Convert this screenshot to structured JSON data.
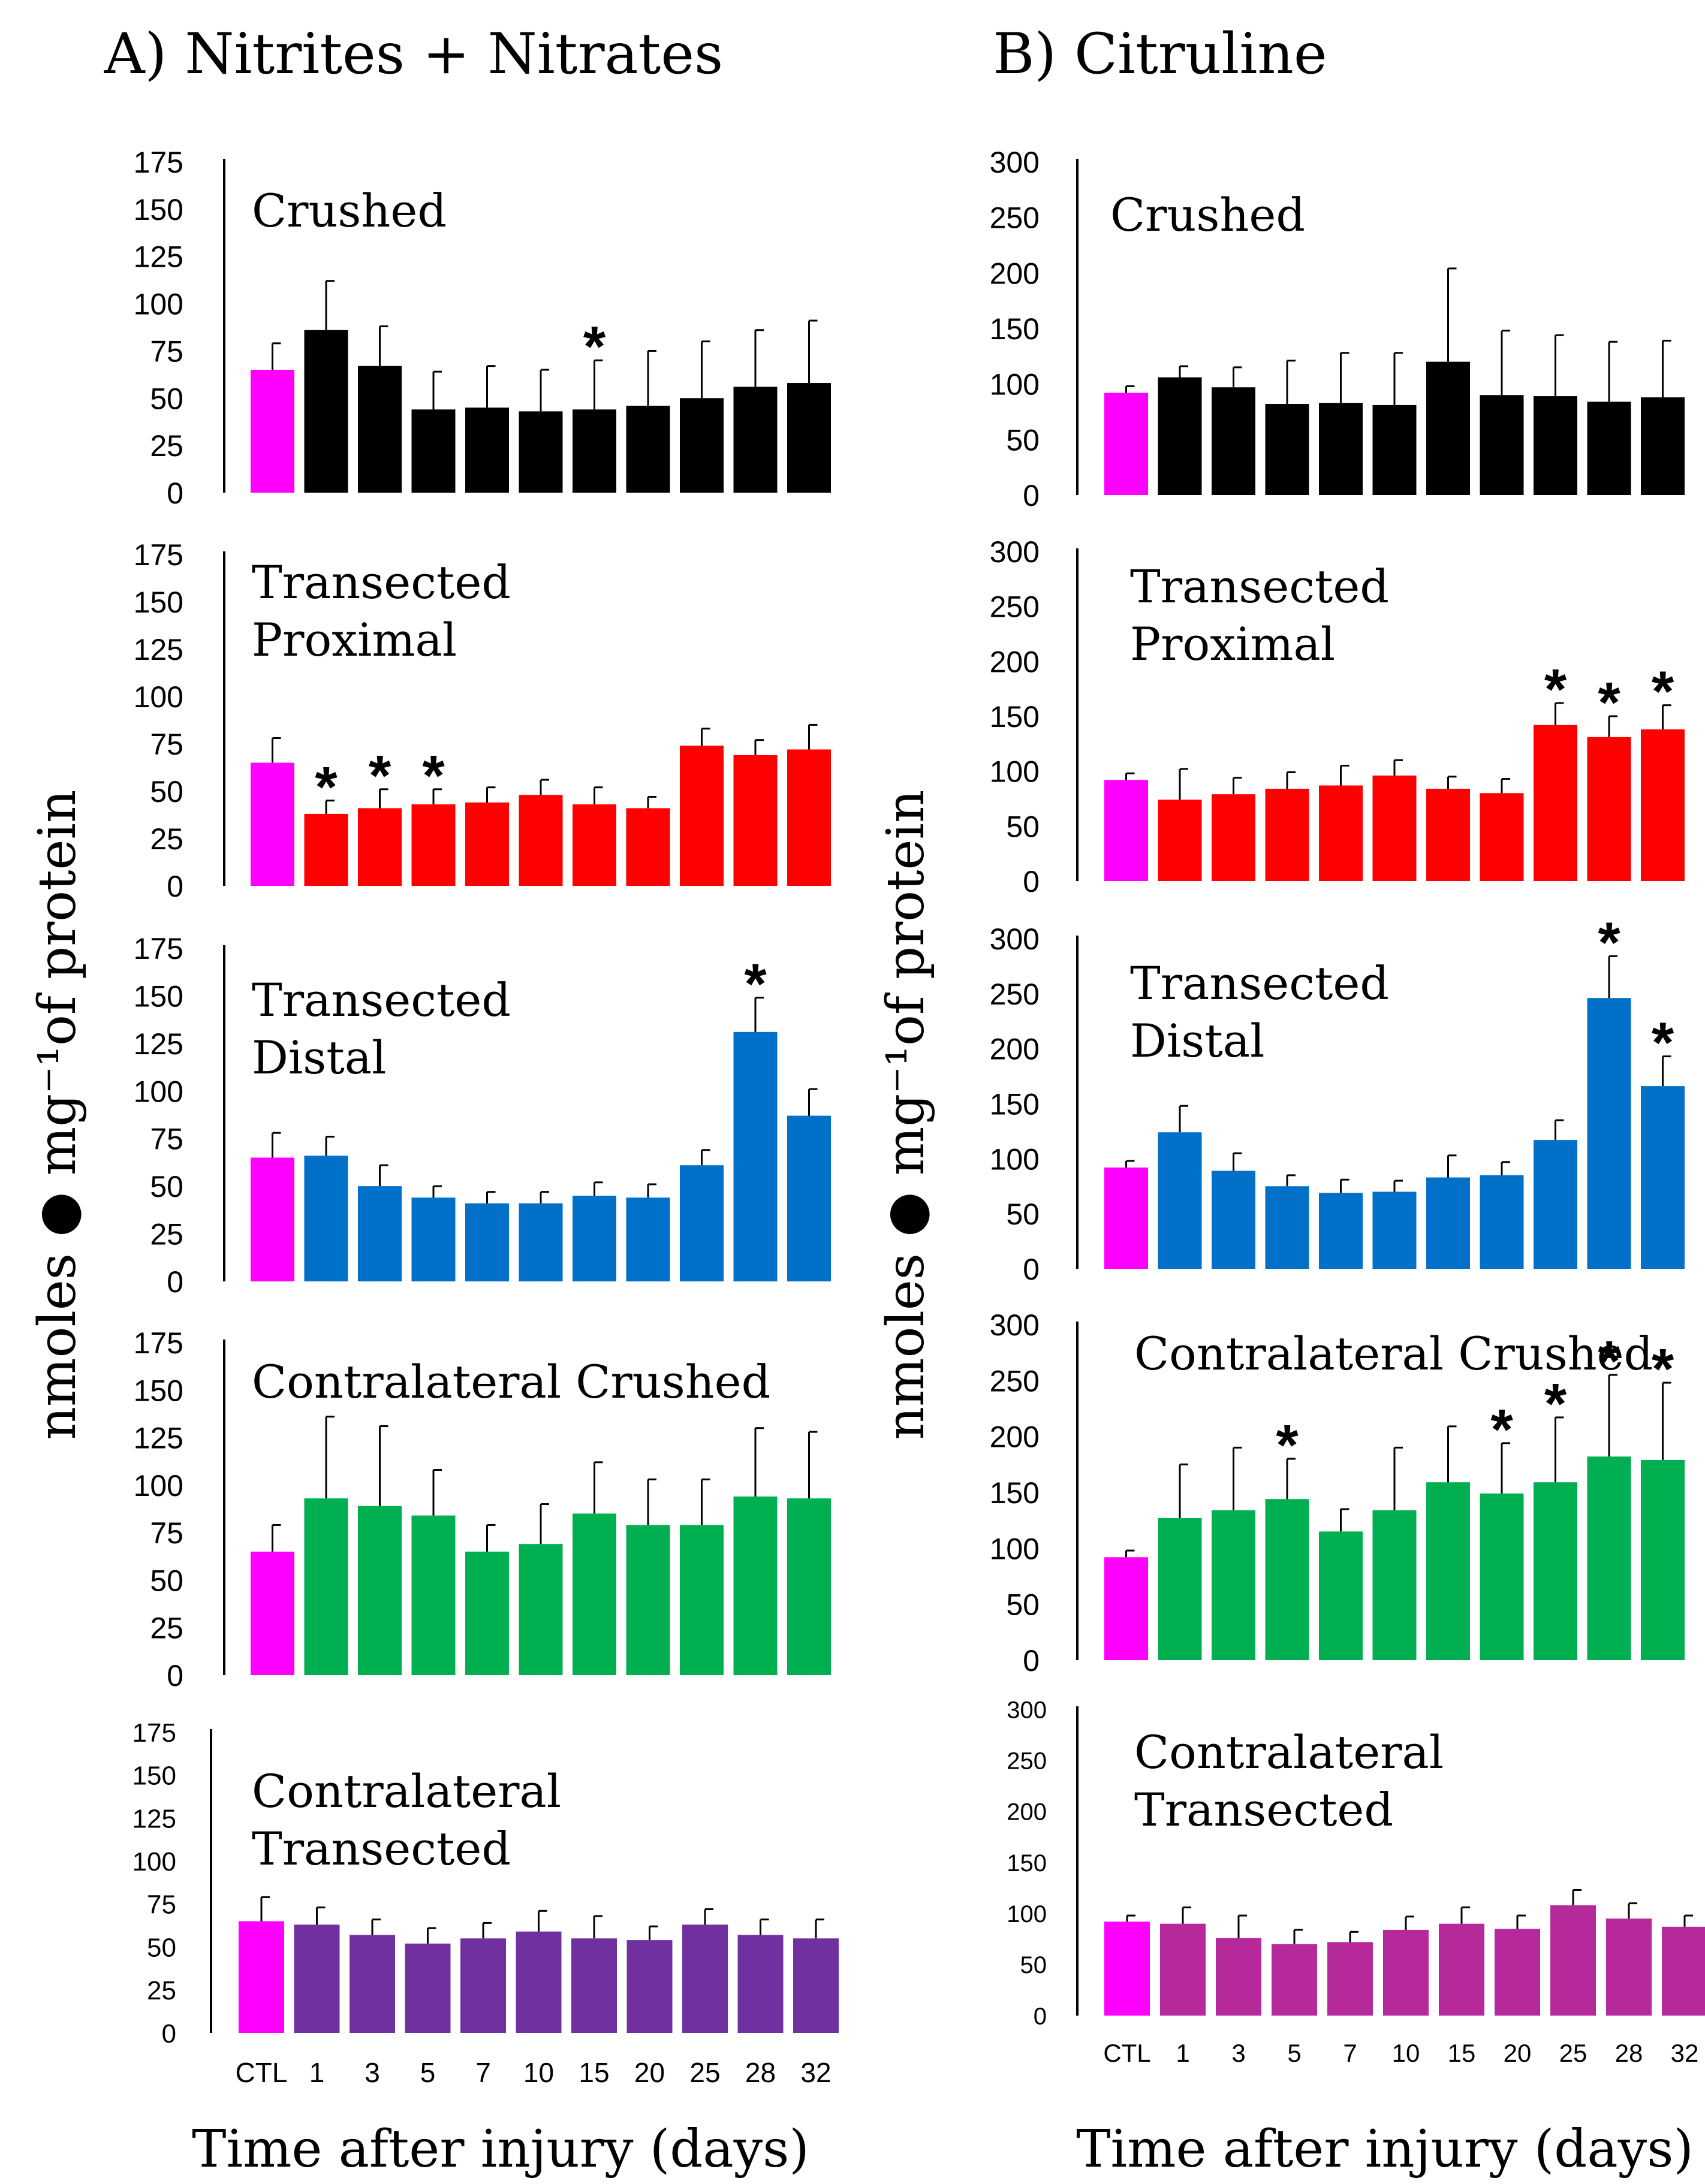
{
  "figure": {
    "panel_a_title": "A) Nitrites + Nitrates",
    "panel_b_title": "B) Citruline",
    "ylabel_a": "nmoles ● mg⁻¹of protein",
    "ylabel_b": "nmoles ● mg⁻¹of protein",
    "xlabel_a": "Time after injury (days)",
    "xlabel_b": "Time after injury (days)",
    "significance_marker": "*"
  },
  "chart_data": [
    {
      "type": "bar",
      "panel": "A",
      "title_lines": [
        "Crushed"
      ],
      "categories": [
        "CTL",
        "1",
        "3",
        "5",
        "7",
        "10",
        "15",
        "20",
        "25",
        "28",
        "32"
      ],
      "values": [
        65,
        86,
        67,
        44,
        45,
        43,
        44,
        46,
        50,
        56,
        58
      ],
      "errors": [
        14,
        26,
        21,
        20,
        22,
        22,
        26,
        29,
        30,
        30,
        33
      ],
      "significant": [
        false,
        false,
        false,
        false,
        false,
        false,
        true,
        false,
        false,
        false,
        false
      ],
      "ylim": [
        0,
        175
      ],
      "yticks": [
        0,
        25,
        50,
        75,
        100,
        125,
        150,
        175
      ],
      "colors": {
        "control": "#ff00ff",
        "series": "#000000"
      }
    },
    {
      "type": "bar",
      "panel": "A",
      "title_lines": [
        "Transected",
        "Proximal"
      ],
      "categories": [
        "CTL",
        "1",
        "3",
        "5",
        "7",
        "10",
        "15",
        "20",
        "25",
        "28",
        "32"
      ],
      "values": [
        65,
        38,
        41,
        43,
        44,
        48,
        43,
        41,
        74,
        69,
        72
      ],
      "errors": [
        13,
        7,
        10,
        8,
        8,
        8,
        9,
        6,
        9,
        8,
        13
      ],
      "significant": [
        false,
        true,
        true,
        true,
        false,
        false,
        false,
        false,
        false,
        false,
        false
      ],
      "ylim": [
        0,
        175
      ],
      "yticks": [
        0,
        25,
        50,
        75,
        100,
        125,
        150,
        175
      ],
      "colors": {
        "control": "#ff00ff",
        "series": "#ff0000"
      }
    },
    {
      "type": "bar",
      "panel": "A",
      "title_lines": [
        "Transected",
        "Distal"
      ],
      "categories": [
        "CTL",
        "1",
        "3",
        "5",
        "7",
        "10",
        "15",
        "20",
        "25",
        "28",
        "32"
      ],
      "values": [
        65,
        66,
        50,
        44,
        41,
        41,
        45,
        44,
        61,
        131,
        87
      ],
      "errors": [
        13,
        10,
        11,
        6,
        6,
        6,
        7,
        7,
        8,
        18,
        14
      ],
      "significant": [
        false,
        false,
        false,
        false,
        false,
        false,
        false,
        false,
        false,
        true,
        false
      ],
      "ylim": [
        0,
        175
      ],
      "yticks": [
        0,
        25,
        50,
        75,
        100,
        125,
        150,
        175
      ],
      "colors": {
        "control": "#ff00ff",
        "series": "#0070c8"
      }
    },
    {
      "type": "bar",
      "panel": "A",
      "title_lines": [
        "Contralateral Crushed"
      ],
      "categories": [
        "CTL",
        "1",
        "3",
        "5",
        "7",
        "10",
        "15",
        "20",
        "25",
        "28",
        "32"
      ],
      "values": [
        65,
        93,
        89,
        84,
        65,
        69,
        85,
        79,
        79,
        94,
        93
      ],
      "errors": [
        14,
        43,
        42,
        24,
        14,
        21,
        27,
        24,
        24,
        36,
        35
      ],
      "significant": [
        false,
        false,
        false,
        false,
        false,
        false,
        false,
        false,
        false,
        false,
        false
      ],
      "ylim": [
        0,
        175
      ],
      "yticks": [
        0,
        25,
        50,
        75,
        100,
        125,
        150,
        175
      ],
      "colors": {
        "control": "#ff00ff",
        "series": "#00b050"
      }
    },
    {
      "type": "bar",
      "panel": "A",
      "title_lines": [
        "Contralateral",
        "Transected"
      ],
      "categories": [
        "CTL",
        "1",
        "3",
        "5",
        "7",
        "10",
        "15",
        "20",
        "25",
        "28",
        "32"
      ],
      "values": [
        65,
        63,
        57,
        52,
        55,
        59,
        55,
        54,
        63,
        57,
        55
      ],
      "errors": [
        14,
        10,
        9,
        9,
        9,
        12,
        13,
        8,
        9,
        9,
        11
      ],
      "significant": [
        false,
        false,
        false,
        false,
        false,
        false,
        false,
        false,
        false,
        false,
        false
      ],
      "ylim": [
        0,
        175
      ],
      "yticks": [
        0,
        25,
        50,
        75,
        100,
        125,
        150,
        175
      ],
      "colors": {
        "control": "#ff00ff",
        "series": "#7030a0"
      },
      "xlabel_ticks": true
    },
    {
      "type": "bar",
      "panel": "B",
      "title_lines": [
        "Crushed"
      ],
      "categories": [
        "CTL",
        "1",
        "3",
        "5",
        "7",
        "10",
        "15",
        "20",
        "25",
        "28",
        "32"
      ],
      "values": [
        92,
        106,
        97,
        82,
        83,
        81,
        120,
        90,
        89,
        84,
        88
      ],
      "errors": [
        6,
        10,
        18,
        39,
        45,
        47,
        84,
        58,
        55,
        54,
        51
      ],
      "significant": [
        false,
        false,
        false,
        false,
        false,
        false,
        false,
        false,
        false,
        false,
        false
      ],
      "ylim": [
        0,
        300
      ],
      "yticks": [
        0,
        50,
        100,
        150,
        200,
        250,
        300
      ],
      "colors": {
        "control": "#ff00ff",
        "series": "#000000"
      }
    },
    {
      "type": "bar",
      "panel": "B",
      "title_lines": [
        "Transected",
        "Proximal"
      ],
      "categories": [
        "CTL",
        "1",
        "3",
        "5",
        "7",
        "10",
        "15",
        "20",
        "25",
        "28",
        "32"
      ],
      "values": [
        92,
        74,
        79,
        84,
        87,
        96,
        84,
        80,
        142,
        131,
        138
      ],
      "errors": [
        6,
        28,
        15,
        15,
        18,
        14,
        11,
        13,
        20,
        19,
        22
      ],
      "significant": [
        false,
        false,
        false,
        false,
        false,
        false,
        false,
        false,
        true,
        true,
        true
      ],
      "ylim": [
        0,
        300
      ],
      "yticks": [
        0,
        50,
        100,
        150,
        200,
        250,
        300
      ],
      "colors": {
        "control": "#ff00ff",
        "series": "#ff0000"
      }
    },
    {
      "type": "bar",
      "panel": "B",
      "title_lines": [
        "Transected",
        "Distal"
      ],
      "categories": [
        "CTL",
        "1",
        "3",
        "5",
        "7",
        "10",
        "15",
        "20",
        "25",
        "28",
        "32"
      ],
      "values": [
        92,
        124,
        89,
        75,
        69,
        70,
        83,
        85,
        117,
        246,
        166
      ],
      "errors": [
        6,
        24,
        16,
        10,
        12,
        10,
        20,
        12,
        18,
        38,
        27
      ],
      "significant": [
        false,
        false,
        false,
        false,
        false,
        false,
        false,
        false,
        false,
        true,
        true
      ],
      "ylim": [
        0,
        300
      ],
      "yticks": [
        0,
        50,
        100,
        150,
        200,
        250,
        300
      ],
      "colors": {
        "control": "#ff00ff",
        "series": "#0070c8"
      }
    },
    {
      "type": "bar",
      "panel": "B",
      "title_lines": [
        "Contralateral Crushed"
      ],
      "categories": [
        "CTL",
        "1",
        "3",
        "5",
        "7",
        "10",
        "15",
        "20",
        "25",
        "28",
        "32"
      ],
      "values": [
        92,
        127,
        134,
        144,
        115,
        134,
        159,
        149,
        159,
        182,
        179
      ],
      "errors": [
        6,
        48,
        56,
        36,
        20,
        56,
        50,
        45,
        58,
        73,
        69
      ],
      "significant": [
        false,
        false,
        false,
        true,
        false,
        false,
        false,
        true,
        true,
        true,
        true
      ],
      "ylim": [
        0,
        300
      ],
      "yticks": [
        0,
        50,
        100,
        150,
        200,
        250,
        300
      ],
      "colors": {
        "control": "#ff00ff",
        "series": "#00b050"
      }
    },
    {
      "type": "bar",
      "panel": "B",
      "title_lines": [
        "Contralateral",
        "Transected"
      ],
      "categories": [
        "CTL",
        "1",
        "3",
        "5",
        "7",
        "10",
        "15",
        "20",
        "25",
        "28",
        "32"
      ],
      "values": [
        92,
        90,
        76,
        70,
        72,
        84,
        90,
        85,
        108,
        95,
        87
      ],
      "errors": [
        6,
        16,
        22,
        14,
        10,
        13,
        16,
        13,
        15,
        15,
        11
      ],
      "significant": [
        false,
        false,
        false,
        false,
        false,
        false,
        false,
        false,
        false,
        false,
        false
      ],
      "ylim": [
        0,
        300
      ],
      "yticks": [
        0,
        50,
        100,
        150,
        200,
        250,
        300
      ],
      "colors": {
        "control": "#ff00ff",
        "series": "#b5299b"
      },
      "xlabel_ticks": true
    }
  ]
}
